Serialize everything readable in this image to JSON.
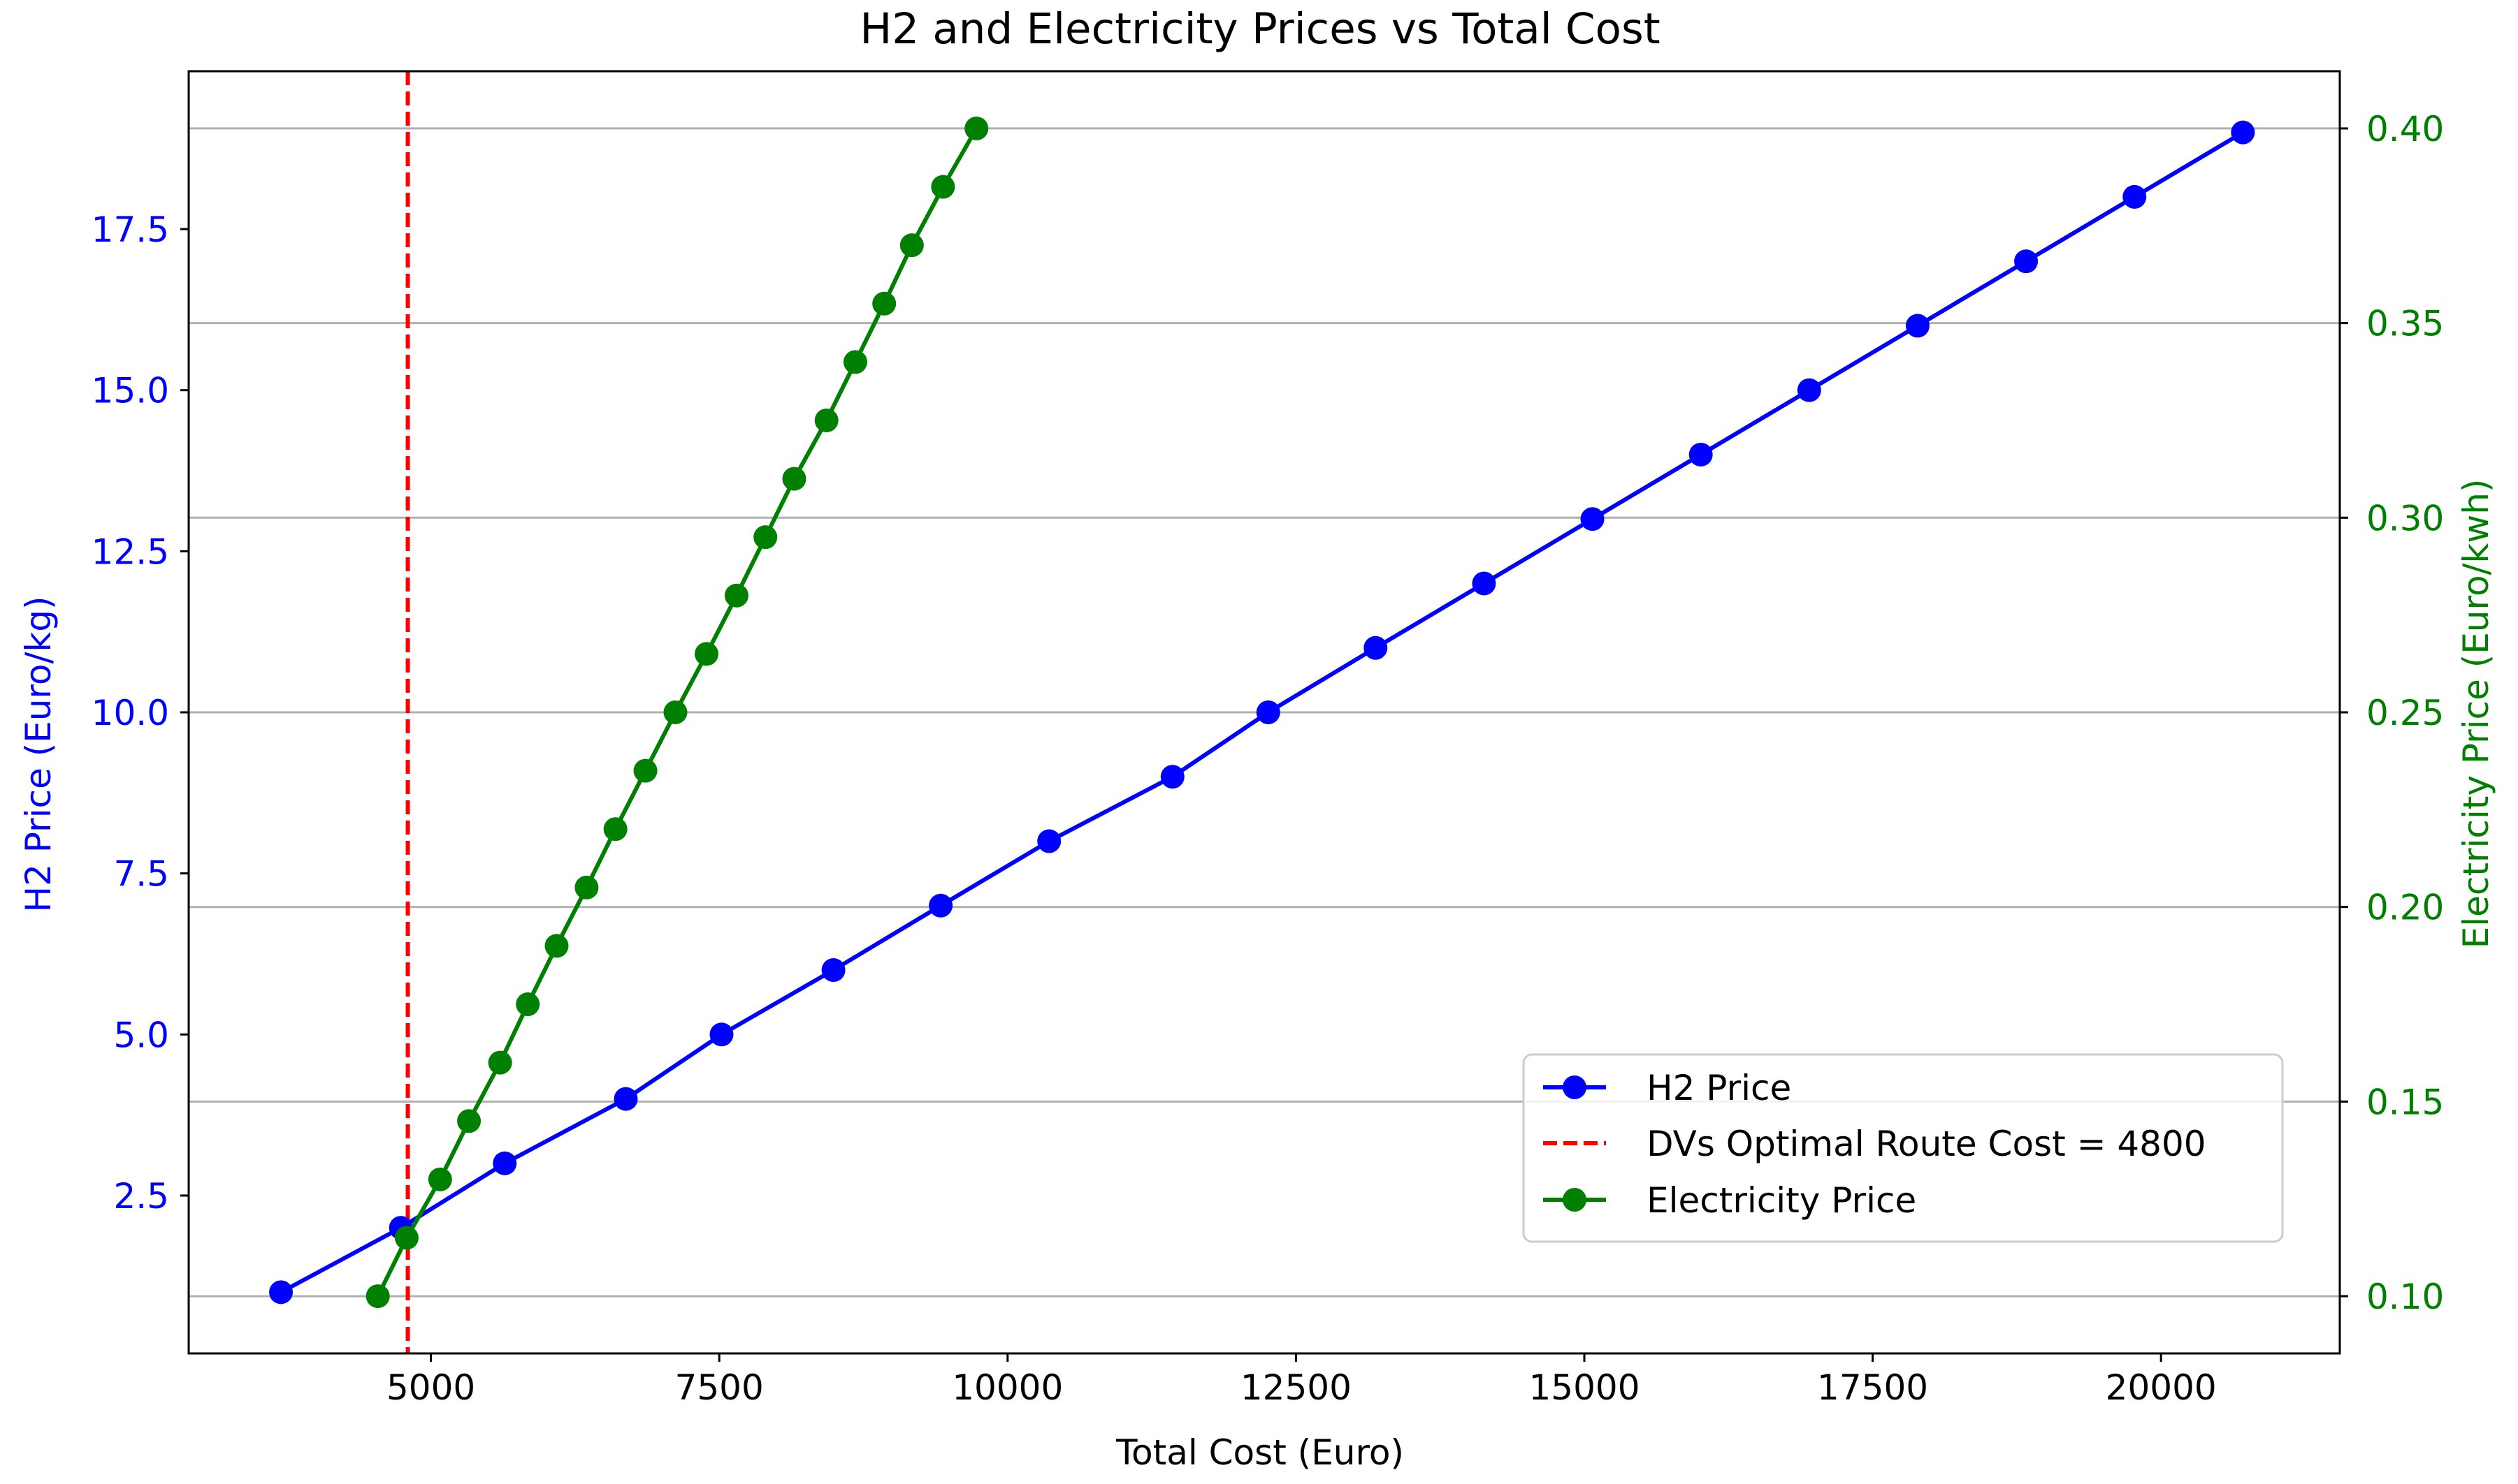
{
  "chart_data": {
    "type": "line",
    "title": "H2 and Electricity Prices vs Total Cost",
    "xlabel": "Total Cost (Euro)",
    "ylabel_left": "H2  Price (Euro/kg)",
    "ylabel_right": "Electricity Price (Euro/kwh)",
    "xlim": [
      2900,
      21550
    ],
    "ylim_left": [
      0.05,
      19.95
    ],
    "ylim_right": [
      0.0853,
      0.4147
    ],
    "x_ticks": [
      5000,
      7500,
      10000,
      12500,
      15000,
      17500,
      20000
    ],
    "x_tick_labels": [
      "5000",
      "7500",
      "10000",
      "12500",
      "15000",
      "17500",
      "20000"
    ],
    "y_left_ticks": [
      2.5,
      5.0,
      7.5,
      10.0,
      12.5,
      15.0,
      17.5
    ],
    "y_left_tick_labels": [
      "2.5",
      "5.0",
      "7.5",
      "10.0",
      "12.5",
      "15.0",
      "17.5"
    ],
    "y_right_ticks": [
      0.1,
      0.15,
      0.2,
      0.25,
      0.3,
      0.35,
      0.4
    ],
    "y_right_tick_labels": [
      "0.10",
      "0.15",
      "0.20",
      "0.25",
      "0.30",
      "0.35",
      "0.40"
    ],
    "grid": "horizontal, right-axis ticks",
    "legend_position": "lower right",
    "series": [
      {
        "name": "H2 Price",
        "axis": "left",
        "color": "#0000ff",
        "marker": "circle",
        "x": [
          3700,
          4740,
          5640,
          6690,
          7520,
          8490,
          9420,
          10360,
          11430,
          12260,
          13190,
          14130,
          15070,
          16010,
          16950,
          17890,
          18830,
          19770,
          20710
        ],
        "y": [
          1,
          2,
          3,
          4,
          5,
          6,
          7,
          8,
          9,
          10,
          11,
          12,
          13,
          14,
          15,
          16,
          17,
          18,
          19
        ]
      },
      {
        "name": "DVs Optimal Route Cost = 4800",
        "type": "vline",
        "color": "#ff0000",
        "linestyle": "dashed",
        "x": 4800
      },
      {
        "name": "Electricity Price",
        "axis": "right",
        "color": "#008000",
        "marker": "circle",
        "x": [
          4540,
          4790,
          5080,
          5330,
          5600,
          5840,
          6090,
          6350,
          6600,
          6860,
          7120,
          7390,
          7650,
          7900,
          8150,
          8430,
          8680,
          8930,
          9170,
          9440,
          9730
        ],
        "y": [
          0.1,
          0.115,
          0.13,
          0.145,
          0.16,
          0.175,
          0.19,
          0.205,
          0.22,
          0.235,
          0.25,
          0.265,
          0.28,
          0.295,
          0.31,
          0.325,
          0.34,
          0.355,
          0.37,
          0.385,
          0.4
        ]
      }
    ]
  }
}
